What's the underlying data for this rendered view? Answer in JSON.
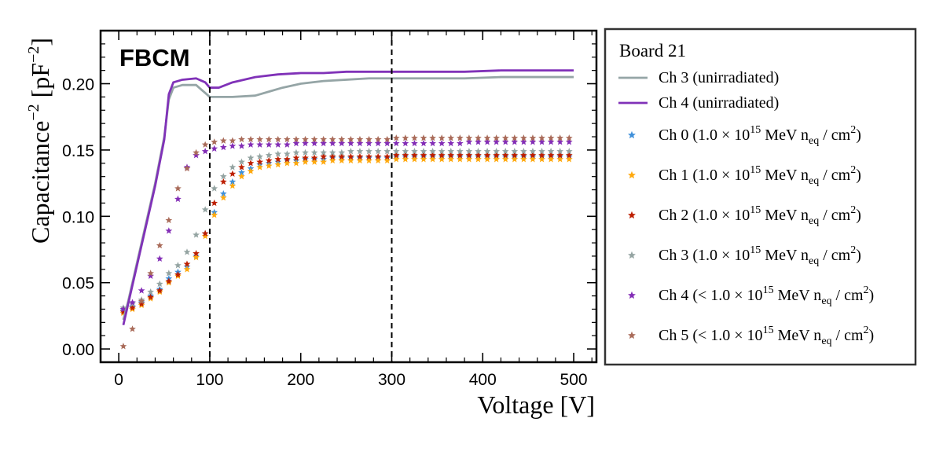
{
  "chart_data": {
    "type": "scatter",
    "experiment_label": "FBCM",
    "xlabel": "Voltage [V]",
    "ylabel_main": "Capacitance",
    "ylabel_exp": "−2",
    "ylabel_unit_open": " [pF",
    "ylabel_unit_exp": "−2",
    "ylabel_unit_close": "]",
    "xlim": [
      -20,
      525
    ],
    "ylim": [
      -0.01,
      0.24
    ],
    "x_ticks": [
      0,
      100,
      200,
      300,
      400,
      500
    ],
    "x_tick_labels": [
      "0",
      "100",
      "200",
      "300",
      "400",
      "500"
    ],
    "y_ticks": [
      0.0,
      0.05,
      0.1,
      0.15,
      0.2
    ],
    "y_tick_labels": [
      "0.00",
      "0.05",
      "0.10",
      "0.15",
      "0.20"
    ],
    "vlines": [
      100,
      300
    ],
    "legend": {
      "title": "Board 21",
      "placement": "outside-right",
      "entries": [
        {
          "key": "line_ch3",
          "type": "line",
          "label": "Ch 3 (unirradiated)"
        },
        {
          "key": "line_ch4",
          "type": "line",
          "label": "Ch 4 (unirradiated)"
        },
        {
          "key": "ch0",
          "type": "marker",
          "label": "Ch 0 (1.0 × 10<sup>15</sup> MeV n<sub>eq</sub> / cm<sup>2</sup>)"
        },
        {
          "key": "ch1",
          "type": "marker",
          "label": "Ch 1 (1.0 × 10<sup>15</sup> MeV n<sub>eq</sub> / cm<sup>2</sup>)"
        },
        {
          "key": "ch2",
          "type": "marker",
          "label": "Ch 2 (1.0 × 10<sup>15</sup> MeV n<sub>eq</sub> / cm<sup>2</sup>)"
        },
        {
          "key": "ch3",
          "type": "marker",
          "label": "Ch 3 (1.0 × 10<sup>15</sup> MeV n<sub>eq</sub> / cm<sup>2</sup>)"
        },
        {
          "key": "ch4",
          "type": "marker",
          "label": "Ch 4 (&lt; 1.0 × 10<sup>15</sup> MeV n<sub>eq</sub> / cm<sup>2</sup>)"
        },
        {
          "key": "ch5",
          "type": "marker",
          "label": "Ch 5 (&lt; 1.0 × 10<sup>15</sup> MeV n<sub>eq</sub> / cm<sup>2</sup>)"
        }
      ]
    },
    "line_series": [
      {
        "key": "line_ch3",
        "name": "Ch 3 (unirradiated)",
        "color": "#95a5a6",
        "x": [
          5,
          10,
          20,
          30,
          40,
          50,
          55,
          60,
          70,
          85,
          95,
          100,
          110,
          125,
          150,
          165,
          180,
          200,
          225,
          250,
          275,
          300,
          340,
          380,
          420,
          460,
          500
        ],
        "y": [
          0.022,
          0.035,
          0.065,
          0.095,
          0.125,
          0.16,
          0.188,
          0.197,
          0.199,
          0.199,
          0.193,
          0.19,
          0.19,
          0.19,
          0.191,
          0.194,
          0.197,
          0.2,
          0.202,
          0.203,
          0.204,
          0.204,
          0.204,
          0.204,
          0.205,
          0.205,
          0.205
        ]
      },
      {
        "key": "line_ch4",
        "name": "Ch 4 (unirradiated)",
        "color": "#8032b8",
        "x": [
          5,
          10,
          20,
          30,
          40,
          50,
          55,
          60,
          70,
          85,
          95,
          100,
          110,
          125,
          150,
          175,
          200,
          225,
          250,
          275,
          300,
          340,
          380,
          420,
          460,
          500
        ],
        "y": [
          0.018,
          0.033,
          0.063,
          0.093,
          0.123,
          0.158,
          0.192,
          0.201,
          0.203,
          0.204,
          0.201,
          0.197,
          0.197,
          0.201,
          0.205,
          0.207,
          0.208,
          0.208,
          0.209,
          0.209,
          0.209,
          0.209,
          0.209,
          0.21,
          0.21,
          0.21
        ]
      }
    ],
    "series": [
      {
        "key": "ch0",
        "name": "Ch 0",
        "color": "#3f90da",
        "x": [
          5,
          15,
          25,
          35,
          45,
          55,
          65,
          75,
          85,
          95,
          105,
          115,
          125,
          135,
          145,
          155,
          165,
          175,
          185,
          195,
          205,
          215,
          225,
          235,
          245,
          255,
          265,
          275,
          285,
          295,
          305,
          315,
          325,
          335,
          345,
          355,
          365,
          375,
          385,
          395,
          405,
          415,
          425,
          435,
          445,
          455,
          465,
          475,
          485,
          495
        ],
        "y": [
          0.029,
          0.032,
          0.035,
          0.04,
          0.045,
          0.053,
          0.058,
          0.062,
          0.07,
          0.087,
          0.103,
          0.117,
          0.126,
          0.133,
          0.136,
          0.139,
          0.14,
          0.141,
          0.142,
          0.142,
          0.143,
          0.143,
          0.143,
          0.144,
          0.144,
          0.144,
          0.144,
          0.144,
          0.144,
          0.144,
          0.145,
          0.145,
          0.145,
          0.145,
          0.145,
          0.145,
          0.145,
          0.145,
          0.145,
          0.145,
          0.145,
          0.145,
          0.145,
          0.145,
          0.145,
          0.145,
          0.145,
          0.145,
          0.145,
          0.145
        ]
      },
      {
        "key": "ch1",
        "name": "Ch 1",
        "color": "#ffa90e",
        "x": [
          5,
          15,
          25,
          35,
          45,
          55,
          65,
          75,
          85,
          95,
          105,
          115,
          125,
          135,
          145,
          155,
          165,
          175,
          185,
          195,
          205,
          215,
          225,
          235,
          245,
          255,
          265,
          275,
          285,
          295,
          305,
          315,
          325,
          335,
          345,
          355,
          365,
          375,
          385,
          395,
          405,
          415,
          425,
          435,
          445,
          455,
          465,
          475,
          485,
          495
        ],
        "y": [
          0.027,
          0.03,
          0.033,
          0.038,
          0.043,
          0.05,
          0.055,
          0.06,
          0.069,
          0.085,
          0.101,
          0.114,
          0.123,
          0.13,
          0.134,
          0.137,
          0.138,
          0.139,
          0.14,
          0.14,
          0.141,
          0.141,
          0.141,
          0.142,
          0.142,
          0.142,
          0.142,
          0.142,
          0.142,
          0.142,
          0.143,
          0.143,
          0.143,
          0.143,
          0.143,
          0.143,
          0.143,
          0.143,
          0.143,
          0.143,
          0.143,
          0.143,
          0.143,
          0.143,
          0.143,
          0.143,
          0.143,
          0.143,
          0.143,
          0.143
        ]
      },
      {
        "key": "ch2",
        "name": "Ch 2",
        "color": "#bd1f01",
        "x": [
          5,
          15,
          25,
          35,
          45,
          55,
          65,
          75,
          85,
          95,
          105,
          115,
          125,
          135,
          145,
          155,
          165,
          175,
          185,
          195,
          205,
          215,
          225,
          235,
          245,
          255,
          265,
          275,
          285,
          295,
          305,
          315,
          325,
          335,
          345,
          355,
          365,
          375,
          385,
          395,
          405,
          415,
          425,
          435,
          445,
          455,
          465,
          475,
          485,
          495
        ],
        "y": [
          0.028,
          0.031,
          0.034,
          0.039,
          0.044,
          0.051,
          0.056,
          0.064,
          0.072,
          0.087,
          0.11,
          0.126,
          0.132,
          0.137,
          0.14,
          0.141,
          0.142,
          0.143,
          0.143,
          0.144,
          0.144,
          0.144,
          0.145,
          0.145,
          0.145,
          0.145,
          0.145,
          0.145,
          0.145,
          0.145,
          0.146,
          0.146,
          0.146,
          0.146,
          0.146,
          0.146,
          0.146,
          0.146,
          0.146,
          0.146,
          0.146,
          0.146,
          0.146,
          0.146,
          0.146,
          0.146,
          0.146,
          0.146,
          0.146,
          0.146
        ]
      },
      {
        "key": "ch3",
        "name": "Ch 3",
        "color": "#94a4a2",
        "x": [
          5,
          15,
          25,
          35,
          45,
          55,
          65,
          75,
          85,
          95,
          105,
          115,
          125,
          135,
          145,
          155,
          165,
          175,
          185,
          195,
          205,
          215,
          225,
          235,
          245,
          255,
          265,
          275,
          285,
          295,
          305,
          315,
          325,
          335,
          345,
          355,
          365,
          375,
          385,
          395,
          405,
          415,
          425,
          435,
          445,
          455,
          465,
          475,
          485,
          495
        ],
        "y": [
          0.031,
          0.034,
          0.037,
          0.043,
          0.049,
          0.057,
          0.063,
          0.073,
          0.086,
          0.105,
          0.121,
          0.13,
          0.137,
          0.141,
          0.144,
          0.145,
          0.146,
          0.147,
          0.147,
          0.148,
          0.148,
          0.148,
          0.148,
          0.148,
          0.148,
          0.149,
          0.149,
          0.149,
          0.149,
          0.149,
          0.149,
          0.149,
          0.149,
          0.149,
          0.149,
          0.149,
          0.149,
          0.149,
          0.149,
          0.149,
          0.149,
          0.149,
          0.149,
          0.149,
          0.149,
          0.149,
          0.149,
          0.149,
          0.149,
          0.149
        ]
      },
      {
        "key": "ch4",
        "name": "Ch 4",
        "color": "#832db6",
        "x": [
          5,
          15,
          25,
          35,
          45,
          55,
          65,
          75,
          85,
          95,
          105,
          115,
          125,
          135,
          145,
          155,
          165,
          175,
          185,
          195,
          205,
          215,
          225,
          235,
          245,
          255,
          265,
          275,
          285,
          295,
          305,
          315,
          325,
          335,
          345,
          355,
          365,
          375,
          385,
          395,
          405,
          415,
          425,
          435,
          445,
          455,
          465,
          475,
          485,
          495
        ],
        "y": [
          0.03,
          0.035,
          0.044,
          0.055,
          0.068,
          0.089,
          0.113,
          0.137,
          0.146,
          0.149,
          0.151,
          0.152,
          0.153,
          0.153,
          0.154,
          0.154,
          0.154,
          0.154,
          0.154,
          0.155,
          0.155,
          0.155,
          0.155,
          0.155,
          0.155,
          0.155,
          0.155,
          0.155,
          0.155,
          0.155,
          0.155,
          0.155,
          0.155,
          0.155,
          0.155,
          0.155,
          0.155,
          0.155,
          0.156,
          0.156,
          0.156,
          0.156,
          0.156,
          0.156,
          0.156,
          0.156,
          0.156,
          0.156,
          0.156,
          0.156
        ]
      },
      {
        "key": "ch5",
        "name": "Ch 5",
        "color": "#a96b59",
        "x": [
          5,
          15,
          25,
          35,
          45,
          55,
          65,
          75,
          85,
          95,
          105,
          115,
          125,
          135,
          145,
          155,
          165,
          175,
          185,
          195,
          205,
          215,
          225,
          235,
          245,
          255,
          265,
          275,
          285,
          295,
          305,
          315,
          325,
          335,
          345,
          355,
          365,
          375,
          385,
          395,
          405,
          415,
          425,
          435,
          445,
          455,
          465,
          475,
          485,
          495
        ],
        "y": [
          0.002,
          0.015,
          0.036,
          0.057,
          0.078,
          0.097,
          0.121,
          0.136,
          0.148,
          0.154,
          0.156,
          0.157,
          0.157,
          0.158,
          0.158,
          0.158,
          0.158,
          0.158,
          0.158,
          0.158,
          0.158,
          0.158,
          0.158,
          0.158,
          0.158,
          0.158,
          0.158,
          0.158,
          0.158,
          0.158,
          0.159,
          0.159,
          0.159,
          0.159,
          0.159,
          0.159,
          0.159,
          0.159,
          0.159,
          0.159,
          0.159,
          0.159,
          0.159,
          0.159,
          0.159,
          0.159,
          0.159,
          0.159,
          0.159,
          0.159
        ]
      }
    ]
  }
}
